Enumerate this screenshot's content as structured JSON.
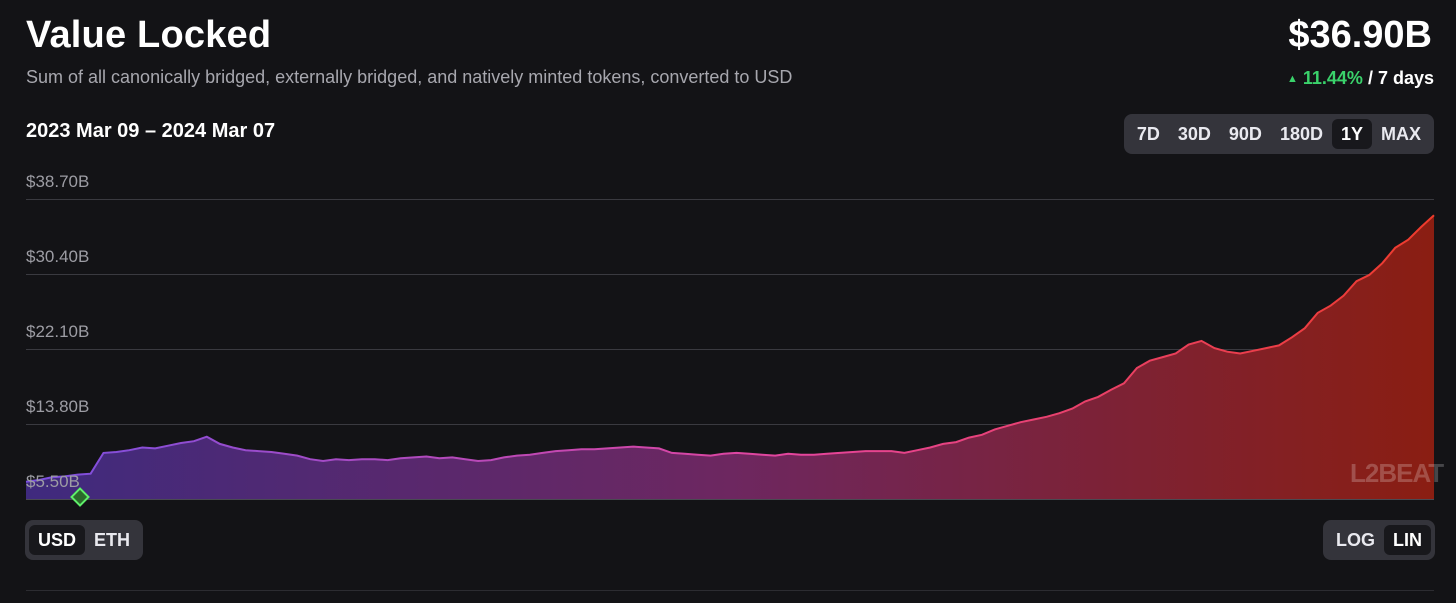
{
  "header": {
    "title": "Value Locked",
    "subtitle": "Sum of all canonically bridged, externally bridged, and natively minted tokens, converted to USD",
    "value": "$36.90B",
    "change_pct": "11.44%",
    "change_period": "/ 7 days",
    "date_range": "2023 Mar 09 – 2024 Mar 07"
  },
  "range_buttons": [
    "7D",
    "30D",
    "90D",
    "180D",
    "1Y",
    "MAX"
  ],
  "active_range": "1Y",
  "unit_buttons": [
    "USD",
    "ETH"
  ],
  "active_unit": "USD",
  "scale_buttons": [
    "LOG",
    "LIN"
  ],
  "active_scale": "LIN",
  "watermark": "L2BEAT",
  "colors": {
    "background": "#131316",
    "positive": "#3ad26b",
    "gradient_start": "#7a4fe0",
    "gradient_mid": "#e5459c",
    "gradient_end": "#ee3b2b"
  },
  "chart_data": {
    "type": "area",
    "title": "Value Locked",
    "x_range": [
      "2023-03-09",
      "2024-03-07"
    ],
    "y_ticks": [
      "$38.70B",
      "$30.40B",
      "$22.10B",
      "$13.80B",
      "$5.50B"
    ],
    "y_tick_values": [
      38.7,
      30.4,
      22.1,
      13.8,
      5.5
    ],
    "ylim": [
      5.5,
      38.7
    ],
    "y_unit": "USD billions",
    "series": [
      {
        "values": [
          7.4,
          7.6,
          7.9,
          8.0,
          8.2,
          8.3,
          10.6,
          10.7,
          10.9,
          11.2,
          11.1,
          11.4,
          11.7,
          11.9,
          12.4,
          11.6,
          11.2,
          10.9,
          10.8,
          10.7,
          10.5,
          10.3,
          9.9,
          9.7,
          9.9,
          9.8,
          9.9,
          9.9,
          9.8,
          10.0,
          10.1,
          10.2,
          10.0,
          10.1,
          9.9,
          9.7,
          9.8,
          10.1,
          10.3,
          10.4,
          10.6,
          10.8,
          10.9,
          11.0,
          11.0,
          11.1,
          11.2,
          11.3,
          11.2,
          11.1,
          10.6,
          10.5,
          10.4,
          10.3,
          10.5,
          10.6,
          10.5,
          10.4,
          10.3,
          10.5,
          10.4,
          10.4,
          10.5,
          10.6,
          10.7,
          10.8,
          10.8,
          10.8,
          10.6,
          10.9,
          11.2,
          11.6,
          11.8,
          12.3,
          12.6,
          13.2,
          13.6,
          14.0,
          14.3,
          14.6,
          15.0,
          15.5,
          16.3,
          16.8,
          17.6,
          18.3,
          20.0,
          20.8,
          21.2,
          21.6,
          22.6,
          23.0,
          22.2,
          21.8,
          21.6,
          21.9,
          22.2,
          22.5,
          23.4,
          24.4,
          26.1,
          26.9,
          28.0,
          29.6,
          30.3,
          31.6,
          33.3,
          34.2,
          35.6,
          36.9
        ]
      }
    ],
    "marker_x": "2023-03-21"
  }
}
